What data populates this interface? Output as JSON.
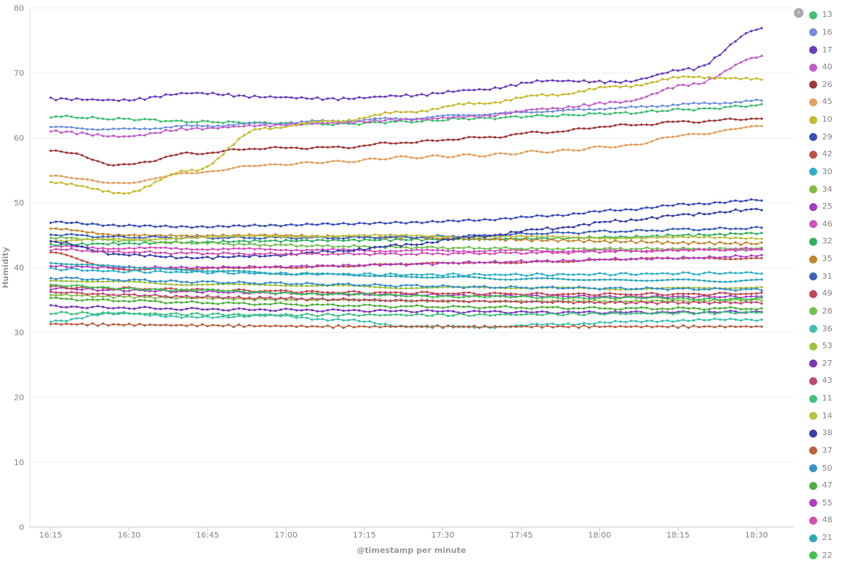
{
  "chart_data": {
    "type": "line",
    "xlabel": "@timestamp per minute",
    "ylabel": "Humidity",
    "ylim": [
      0,
      80
    ],
    "yticks": [
      0,
      10,
      20,
      30,
      40,
      50,
      60,
      70,
      80
    ],
    "xlim": [
      "16:11",
      "18:37"
    ],
    "xticks": [
      "16:15",
      "16:30",
      "16:45",
      "17:00",
      "17:15",
      "17:30",
      "17:45",
      "18:00",
      "18:15",
      "18:30"
    ],
    "x_start": "16:15",
    "x_end": "18:31",
    "legend_position": "right",
    "series": [
      {
        "name": "13",
        "color": "#3fbf6f",
        "values": [
          63.3,
          62.9,
          62.5,
          62.3,
          62.1,
          62.5,
          63.0,
          63.4,
          63.8,
          64.4,
          65.0
        ]
      },
      {
        "name": "16",
        "color": "#6f8fd8",
        "values": [
          61.6,
          61.3,
          61.8,
          62.2,
          62.6,
          63.0,
          63.6,
          64.1,
          64.6,
          65.2,
          65.7
        ]
      },
      {
        "name": "17",
        "color": "#6a3fb8",
        "values": [
          66.0,
          65.8,
          66.9,
          66.3,
          66.0,
          66.5,
          67.4,
          68.8,
          68.6,
          70.6,
          76.8
        ]
      },
      {
        "name": "40",
        "color": "#c05fc8",
        "values": [
          61.0,
          60.2,
          61.4,
          61.9,
          62.3,
          62.8,
          63.3,
          64.5,
          65.5,
          68.2,
          72.5
        ]
      },
      {
        "name": "26",
        "color": "#a03838",
        "values": [
          58.1,
          55.8,
          57.6,
          58.4,
          58.5,
          59.3,
          60.0,
          60.9,
          61.9,
          62.5,
          63.0
        ]
      },
      {
        "name": "45",
        "color": "#e0a060",
        "values": [
          54.1,
          53.0,
          54.6,
          55.8,
          56.3,
          57.0,
          57.3,
          57.9,
          58.7,
          60.5,
          61.8
        ]
      },
      {
        "name": "10",
        "color": "#c8b830",
        "values": [
          53.2,
          51.5,
          55.0,
          61.5,
          62.6,
          64.0,
          65.3,
          66.6,
          67.9,
          69.4,
          69.0
        ]
      },
      {
        "name": "29",
        "color": "#3a4fb8",
        "values": [
          47.0,
          46.4,
          46.2,
          46.5,
          46.8,
          47.0,
          47.3,
          47.9,
          48.8,
          49.8,
          50.5
        ]
      },
      {
        "name": "42",
        "color": "#c05048",
        "values": [
          42.3,
          39.8,
          39.7,
          40.0,
          40.3,
          40.5,
          40.7,
          41.0,
          41.2,
          41.4,
          41.5
        ]
      },
      {
        "name": "30",
        "color": "#30b0c8",
        "values": [
          39.8,
          39.4,
          39.3,
          39.1,
          39.0,
          38.9,
          38.9,
          38.9,
          39.0,
          39.1,
          39.2
        ]
      },
      {
        "name": "34",
        "color": "#7fbf3f",
        "values": [
          35.8,
          35.5,
          35.3,
          35.1,
          35.0,
          34.9,
          34.8,
          34.8,
          34.8,
          34.9,
          35.0
        ]
      },
      {
        "name": "25",
        "color": "#a040c0",
        "values": [
          36.8,
          36.5,
          36.3,
          36.1,
          35.9,
          35.8,
          35.7,
          35.6,
          35.5,
          35.5,
          35.5
        ]
      },
      {
        "name": "46",
        "color": "#d050c0",
        "values": [
          43.2,
          43.0,
          42.9,
          42.8,
          42.7,
          42.6,
          42.6,
          42.6,
          42.6,
          42.7,
          42.8
        ]
      },
      {
        "name": "32",
        "color": "#30b060",
        "values": [
          43.5,
          43.7,
          43.9,
          44.1,
          44.2,
          44.3,
          44.4,
          44.5,
          44.7,
          45.0,
          45.3
        ]
      },
      {
        "name": "35",
        "color": "#c08830",
        "values": [
          46.0,
          45.0,
          44.9,
          45.0,
          44.8,
          44.6,
          44.4,
          44.2,
          44.0,
          43.8,
          43.7
        ]
      },
      {
        "name": "31",
        "color": "#3a60b8",
        "values": [
          45.1,
          44.7,
          44.6,
          44.6,
          44.6,
          44.7,
          44.9,
          45.3,
          45.6,
          45.9,
          46.1
        ]
      },
      {
        "name": "49",
        "color": "#c04858",
        "values": [
          37.0,
          36.8,
          36.6,
          36.4,
          36.2,
          36.1,
          36.0,
          35.9,
          35.9,
          35.9,
          36.0
        ]
      },
      {
        "name": "28",
        "color": "#70c050",
        "values": [
          44.6,
          44.2,
          43.8,
          43.5,
          43.3,
          43.1,
          43.0,
          42.9,
          42.9,
          42.9,
          42.9
        ]
      },
      {
        "name": "36",
        "color": "#40c0b0",
        "values": [
          31.8,
          33.0,
          32.3,
          32.6,
          32.0,
          31.0,
          30.8,
          31.2,
          31.6,
          31.9,
          32.0
        ]
      },
      {
        "name": "53",
        "color": "#a0c040",
        "values": [
          38.0,
          37.7,
          37.5,
          37.3,
          37.1,
          37.0,
          36.9,
          36.8,
          36.8,
          36.8,
          36.9
        ]
      },
      {
        "name": "27",
        "color": "#7a38b8",
        "values": [
          34.0,
          33.8,
          33.6,
          33.5,
          33.4,
          33.3,
          33.2,
          33.1,
          33.1,
          33.1,
          33.2
        ]
      },
      {
        "name": "43",
        "color": "#c04870",
        "values": [
          36.2,
          35.8,
          35.5,
          35.3,
          35.1,
          34.9,
          34.8,
          34.7,
          34.6,
          34.6,
          34.6
        ]
      },
      {
        "name": "11",
        "color": "#40c080",
        "values": [
          33.0,
          32.9,
          32.8,
          32.7,
          32.7,
          32.7,
          32.7,
          32.8,
          32.9,
          33.0,
          33.1
        ]
      },
      {
        "name": "14",
        "color": "#b8c040",
        "values": [
          44.0,
          44.4,
          44.6,
          44.8,
          44.9,
          44.9,
          44.8,
          44.7,
          44.6,
          44.6,
          44.6
        ]
      },
      {
        "name": "38",
        "color": "#3840a8",
        "values": [
          44.0,
          42.0,
          41.5,
          41.8,
          42.5,
          43.5,
          44.8,
          46.0,
          47.2,
          48.2,
          49.0
        ]
      },
      {
        "name": "37",
        "color": "#b86040",
        "values": [
          31.3,
          31.2,
          31.1,
          31.0,
          30.9,
          30.9,
          30.9,
          30.9,
          30.9,
          30.9,
          30.9
        ]
      },
      {
        "name": "50",
        "color": "#3890c8",
        "values": [
          38.4,
          38.1,
          37.8,
          37.6,
          37.4,
          37.2,
          37.0,
          36.9,
          36.8,
          36.7,
          36.6
        ]
      },
      {
        "name": "47",
        "color": "#50b040",
        "values": [
          35.2,
          34.9,
          34.6,
          34.4,
          34.2,
          34.0,
          33.9,
          33.8,
          33.7,
          33.7,
          33.7
        ]
      },
      {
        "name": "55",
        "color": "#b040c0",
        "values": [
          40.2,
          40.0,
          40.0,
          40.1,
          40.3,
          40.5,
          40.8,
          41.0,
          41.3,
          41.5,
          41.8
        ]
      },
      {
        "name": "48",
        "color": "#d050b0",
        "values": [
          42.8,
          42.4,
          42.2,
          42.1,
          42.1,
          42.1,
          42.2,
          42.3,
          42.5,
          42.7,
          42.9
        ]
      },
      {
        "name": "21",
        "color": "#30a8b8",
        "values": [
          40.8,
          40.1,
          39.6,
          39.2,
          38.9,
          38.6,
          38.4,
          38.2,
          38.1,
          38.0,
          38.0
        ]
      },
      {
        "name": "22",
        "color": "#40c050",
        "values": [
          37.2,
          36.8,
          36.5,
          36.2,
          35.9,
          35.7,
          35.5,
          35.4,
          35.3,
          35.2,
          35.2
        ]
      }
    ]
  },
  "legend": {
    "toggle_glyph": "›"
  }
}
